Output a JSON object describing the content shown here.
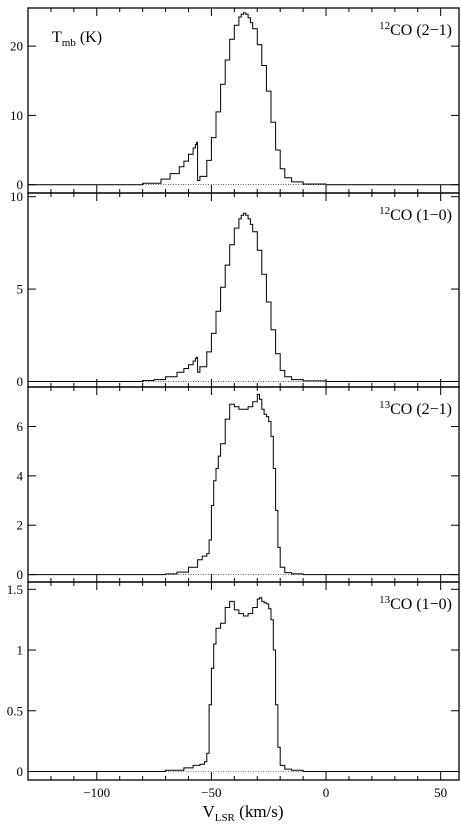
{
  "chart_data": [
    {
      "type": "line",
      "label": {
        "main": "12",
        "tail": "CO (2−1)"
      },
      "ylabel": {
        "main": "T",
        "sub": "mb",
        "tail": " (K)"
      },
      "xlim": [
        -130,
        58
      ],
      "ylim": [
        -1.2,
        25.5
      ],
      "yticks": [
        0,
        10,
        20
      ],
      "ytick_labels": [
        "0",
        "10",
        "20"
      ],
      "series": [
        {
          "x": [
            -130,
            -110,
            -90,
            -80,
            -72,
            -68,
            -64,
            -62,
            -60,
            -58,
            -57,
            -56.5,
            -56,
            -55,
            -52,
            -50,
            -48,
            -46,
            -44,
            -42,
            -40,
            -38,
            -37,
            -36,
            -35,
            -34,
            -33,
            -32,
            -30,
            -28,
            -26,
            -24,
            -22,
            -20,
            -18,
            -15,
            -10,
            0,
            20,
            58
          ],
          "y": [
            0,
            0,
            0,
            0.2,
            0.8,
            1.6,
            2.6,
            3.4,
            4.4,
            5.3,
            5.8,
            6.1,
            0.6,
            1.2,
            3.5,
            6.8,
            10.5,
            14.5,
            18.0,
            21.0,
            23.0,
            24.2,
            24.6,
            24.8,
            24.6,
            24.1,
            23.4,
            22.5,
            20.2,
            17.2,
            13.5,
            9.0,
            5.0,
            2.3,
            1.0,
            0.4,
            0.1,
            0,
            0,
            0
          ]
        }
      ]
    },
    {
      "type": "line",
      "label": {
        "main": "12",
        "tail": "CO (1−0)"
      },
      "ylim": [
        -0.3,
        10.2
      ],
      "yticks": [
        0,
        5,
        10
      ],
      "ytick_labels": [
        "0",
        "5",
        "10"
      ],
      "series": [
        {
          "x": [
            -130,
            -100,
            -90,
            -80,
            -75,
            -70,
            -65,
            -62,
            -60,
            -58,
            -57,
            -56.5,
            -56,
            -55,
            -52,
            -50,
            -48,
            -46,
            -44,
            -42,
            -40,
            -38,
            -37,
            -36,
            -35,
            -34,
            -33,
            -32,
            -30,
            -28,
            -26,
            -24,
            -22,
            -20,
            -18,
            -15,
            -10,
            0,
            20,
            58
          ],
          "y": [
            0,
            0,
            0,
            0.05,
            0.1,
            0.25,
            0.5,
            0.7,
            0.9,
            1.1,
            1.25,
            1.3,
            0.5,
            0.8,
            1.6,
            2.6,
            3.8,
            5.1,
            6.3,
            7.4,
            8.3,
            8.8,
            9.0,
            9.1,
            9.0,
            8.8,
            8.5,
            8.1,
            7.1,
            5.8,
            4.3,
            2.8,
            1.5,
            0.6,
            0.25,
            0.1,
            0.03,
            0,
            0,
            0
          ]
        }
      ]
    },
    {
      "type": "line",
      "label": {
        "main": "13",
        "tail": "CO (2−1)"
      },
      "ylim": [
        -0.3,
        7.6
      ],
      "yticks": [
        0,
        2,
        4,
        6
      ],
      "ytick_labels": [
        "0",
        "2",
        "4",
        "6"
      ],
      "series": [
        {
          "x": [
            -130,
            -100,
            -80,
            -70,
            -65,
            -60,
            -56,
            -54,
            -52,
            -51,
            -50,
            -49,
            -48,
            -47,
            -46,
            -44,
            -42,
            -40,
            -38,
            -36,
            -34,
            -32,
            -30,
            -29,
            -28,
            -27,
            -26,
            -25,
            -24,
            -23,
            -22,
            -21,
            -20,
            -18,
            -15,
            -10,
            0,
            20,
            58
          ],
          "y": [
            0,
            0,
            0,
            0.03,
            0.1,
            0.3,
            0.6,
            0.75,
            0.85,
            1.4,
            2.8,
            3.8,
            4.3,
            4.8,
            5.3,
            6.3,
            6.9,
            6.8,
            6.7,
            6.7,
            6.8,
            7.0,
            7.3,
            7.1,
            6.7,
            6.5,
            6.4,
            6.2,
            5.6,
            4.3,
            2.6,
            1.1,
            0.3,
            0.08,
            0.03,
            0,
            0,
            0,
            0
          ]
        }
      ]
    },
    {
      "type": "line",
      "label": {
        "main": "13",
        "tail": "CO (1−0)"
      },
      "ylim": [
        -0.07,
        1.56
      ],
      "yticks": [
        0,
        0.5,
        1,
        1.5
      ],
      "ytick_labels": [
        "0",
        "0.5",
        "1",
        "1.5"
      ],
      "xticks": [
        -100,
        -50,
        0,
        50
      ],
      "xtick_labels": [
        "−100",
        "−50",
        "0",
        "50"
      ],
      "xlabel": {
        "main": "V",
        "sub": "LSR",
        "tail": " (km/s)"
      },
      "series": [
        {
          "x": [
            -130,
            -100,
            -80,
            -70,
            -62,
            -58,
            -55,
            -53,
            -52,
            -51,
            -50,
            -49,
            -48,
            -46,
            -44,
            -42,
            -40,
            -38,
            -36,
            -34,
            -32,
            -30,
            -29,
            -28,
            -27,
            -26,
            -25,
            -24,
            -23,
            -22,
            -21,
            -20,
            -18,
            -15,
            -10,
            0,
            20,
            58
          ],
          "y": [
            0,
            0,
            0,
            0.01,
            0.03,
            0.05,
            0.06,
            0.08,
            0.15,
            0.55,
            0.85,
            1.05,
            1.18,
            1.22,
            1.35,
            1.4,
            1.33,
            1.3,
            1.28,
            1.3,
            1.35,
            1.42,
            1.43,
            1.4,
            1.39,
            1.38,
            1.34,
            1.25,
            1.0,
            0.55,
            0.2,
            0.05,
            0.02,
            0.01,
            0,
            0,
            0,
            0
          ]
        }
      ]
    }
  ]
}
